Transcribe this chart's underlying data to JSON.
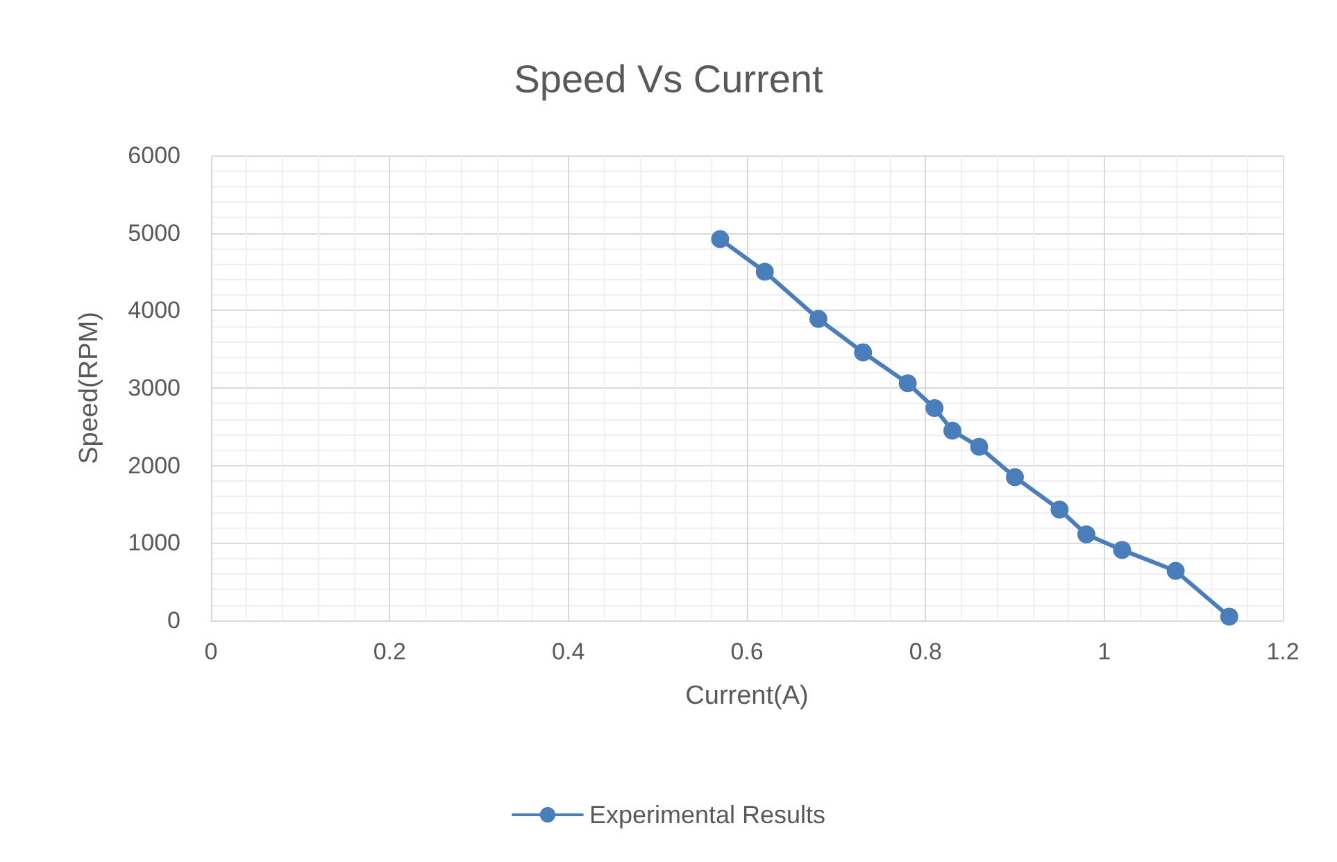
{
  "chart_data": {
    "type": "line",
    "title": "Speed Vs Current",
    "xlabel": "Current(A)",
    "ylabel": "Speed(RPM)",
    "x": [
      0.57,
      0.62,
      0.68,
      0.73,
      0.78,
      0.81,
      0.83,
      0.86,
      0.9,
      0.95,
      0.98,
      1.02,
      1.08,
      1.14
    ],
    "series": [
      {
        "name": "Experimental Results",
        "color": "#4a7ebb",
        "values": [
          4920,
          4500,
          3890,
          3460,
          3060,
          2740,
          2450,
          2240,
          1850,
          1430,
          1110,
          910,
          640,
          50
        ]
      }
    ],
    "xlim": [
      0,
      1.2
    ],
    "xticks": [
      0,
      0.2,
      0.4,
      0.6,
      0.8,
      1,
      1.2
    ],
    "ylim": [
      0,
      6000
    ],
    "yticks": [
      0,
      1000,
      2000,
      3000,
      4000,
      5000,
      6000
    ],
    "grid": true,
    "legend": "bottom",
    "marker": "circle",
    "line_style": "solid"
  }
}
